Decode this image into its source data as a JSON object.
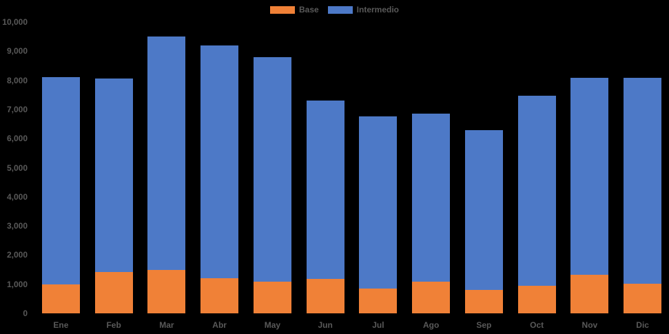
{
  "chart_data": {
    "type": "bar",
    "stacked": true,
    "title": "",
    "xlabel": "",
    "ylabel": "",
    "categories": [
      "Ene",
      "Feb",
      "Mar",
      "Abr",
      "May",
      "Jun",
      "Jul",
      "Ago",
      "Sep",
      "Oct",
      "Nov",
      "Dic"
    ],
    "series": [
      {
        "name": "Base",
        "color": "#f08137",
        "values": [
          1000,
          1420,
          1490,
          1200,
          1090,
          1190,
          840,
          1080,
          800,
          950,
          1320,
          1010
        ]
      },
      {
        "name": "Intermedio",
        "color": "#4d79c7",
        "values": [
          7100,
          6650,
          8010,
          8000,
          7710,
          6110,
          5930,
          5770,
          5500,
          6510,
          6760,
          7070
        ]
      }
    ],
    "ylim": [
      0,
      10000
    ],
    "ytick_step": 1000,
    "ytick_labels": [
      "0",
      "1,000",
      "2,000",
      "3,000",
      "4,000",
      "5,000",
      "6,000",
      "7,000",
      "8,000",
      "9,000",
      "10,000"
    ],
    "legend_position": "top",
    "grid": false,
    "background_color": "#000000",
    "text_color": "#595959"
  }
}
